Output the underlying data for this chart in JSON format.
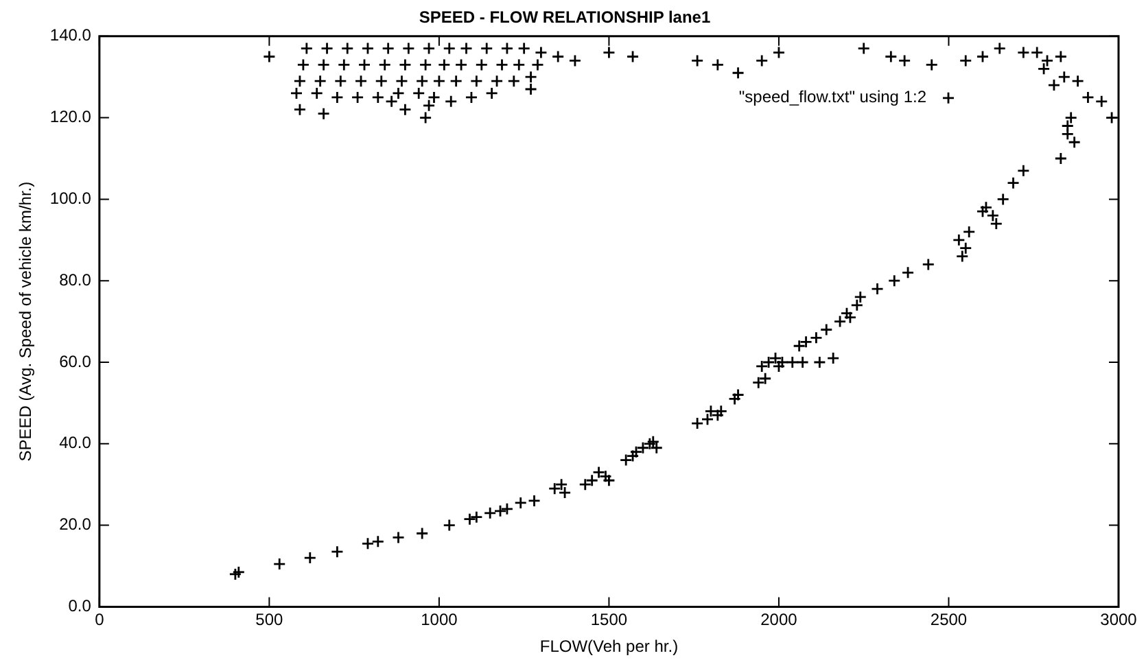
{
  "chart_data": {
    "type": "scatter",
    "title": "SPEED - FLOW RELATIONSHIP lane1",
    "xlabel": "FLOW(Veh per hr.)",
    "ylabel": "SPEED (Avg. Speed of vehicle km/hr.)",
    "xlim": [
      0,
      3000
    ],
    "xticks": [
      0,
      500,
      1000,
      1500,
      2000,
      2500,
      3000
    ],
    "ylim": [
      0,
      140
    ],
    "yticks": [
      {
        "value": 0,
        "label": "0.0"
      },
      {
        "value": 20,
        "label": "20.0"
      },
      {
        "value": 40,
        "label": "40.0"
      },
      {
        "value": 60,
        "label": "60.0"
      },
      {
        "value": 80,
        "label": "80.0"
      },
      {
        "value": 100,
        "label": "100.0"
      },
      {
        "value": 120,
        "label": "120.0"
      },
      {
        "value": 140,
        "label": "140.0"
      }
    ],
    "grid": false,
    "legend": "top right",
    "marker": "cross",
    "series": [
      {
        "name": "\"speed_flow.txt\" using 1:2",
        "color": "#000000",
        "x": [
          400,
          410,
          530,
          620,
          700,
          790,
          820,
          880,
          950,
          1030,
          1090,
          1110,
          1150,
          1180,
          1200,
          1240,
          1280,
          1340,
          1360,
          1370,
          1430,
          1450,
          1470,
          1490,
          1500,
          1550,
          1570,
          1580,
          1600,
          1620,
          1630,
          1640,
          1760,
          1790,
          1800,
          1820,
          1830,
          1870,
          1880,
          1950,
          1970,
          1990,
          2000,
          2010,
          1940,
          1960,
          2040,
          2060,
          2080,
          2110,
          2070,
          2120,
          2160,
          2140,
          2180,
          2200,
          2210,
          2230,
          2240,
          2290,
          2340,
          2380,
          2440,
          2530,
          2550,
          2540,
          2560,
          2610,
          2630,
          2640,
          2600,
          2660,
          2690,
          2720,
          2830,
          2850,
          2850,
          2860,
          2870,
          2840,
          2830,
          2790,
          2760,
          2780,
          2810,
          2880,
          2910,
          2950,
          2980,
          2720,
          2650,
          2600,
          2550,
          2450,
          2370,
          2330,
          2250,
          2000,
          1950,
          1880,
          1820,
          1760,
          1570,
          1500,
          1400,
          610,
          600,
          590,
          580,
          670,
          660,
          650,
          640,
          730,
          720,
          710,
          700,
          790,
          780,
          770,
          760,
          850,
          840,
          830,
          820,
          910,
          900,
          890,
          880,
          970,
          960,
          950,
          940,
          1030,
          1015,
          1000,
          985,
          1080,
          1065,
          1050,
          1035,
          1140,
          1125,
          1110,
          1095,
          1200,
          1185,
          1170,
          1155,
          1250,
          1235,
          1220,
          1300,
          1290,
          1270,
          500,
          590,
          660,
          860,
          900,
          960,
          970,
          1270,
          1350
        ],
        "values": [
          8,
          8.5,
          10.5,
          12,
          13.5,
          15.5,
          16,
          17,
          18,
          20,
          21.5,
          22,
          23,
          23.5,
          24,
          25.5,
          26,
          29,
          30,
          28,
          30,
          31,
          33,
          32,
          31,
          36,
          37,
          38,
          39,
          40,
          40.5,
          39,
          45,
          46,
          48,
          47,
          48,
          51,
          52,
          59,
          60,
          61,
          59,
          60,
          55,
          56,
          60,
          64,
          65,
          66,
          60,
          60,
          61,
          68,
          70,
          72,
          71,
          74,
          76,
          78,
          80,
          82,
          84,
          90,
          88,
          86,
          92,
          98,
          96,
          94,
          97,
          100,
          104,
          107,
          110,
          116,
          118,
          120,
          114,
          130,
          135,
          134,
          136,
          132,
          128,
          129,
          125,
          124,
          120,
          136,
          137,
          135,
          134,
          133,
          134,
          135,
          137,
          136,
          134,
          131,
          133,
          134,
          135,
          136,
          134,
          137,
          133,
          129,
          126,
          137,
          133,
          129,
          126,
          137,
          133,
          129,
          125,
          137,
          133,
          129,
          125,
          137,
          133,
          129,
          125,
          137,
          133,
          129,
          126,
          137,
          133,
          129,
          126,
          137,
          133,
          129,
          125,
          137,
          133,
          129,
          124,
          137,
          133,
          129,
          125,
          137,
          133,
          129,
          126,
          137,
          133,
          129,
          136,
          133,
          130,
          135,
          122,
          121,
          124,
          122,
          120,
          123,
          127,
          135
        ]
      }
    ]
  }
}
